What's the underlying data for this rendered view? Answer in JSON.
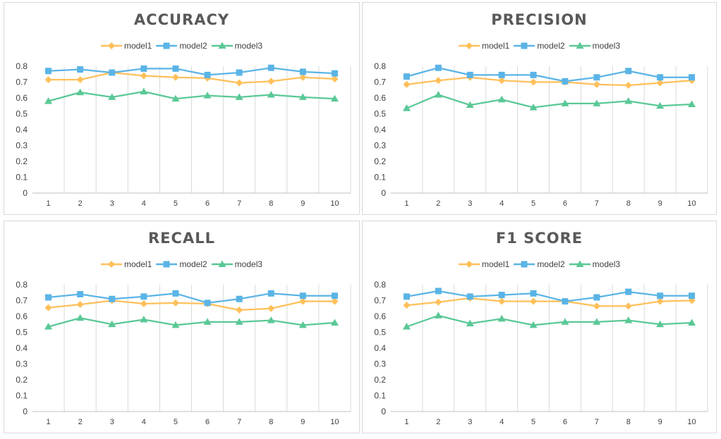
{
  "colors": {
    "model1": "#FFC05A",
    "model2": "#5AB4E6",
    "model3": "#5AC896",
    "grid": "#d9d9d9",
    "axis": "#bfbfbf",
    "title": "#595959"
  },
  "chart_data": [
    {
      "type": "line",
      "title": "ACCURACY",
      "categories": [
        "1",
        "2",
        "3",
        "4",
        "5",
        "6",
        "7",
        "8",
        "9",
        "10"
      ],
      "ylim": [
        0,
        0.8
      ],
      "yticks": [
        "0",
        "0.1",
        "0.2",
        "0.3",
        "0.4",
        "0.5",
        "0.6",
        "0.7",
        "0.8"
      ],
      "grid": "vertical",
      "legend_position": "top",
      "series": [
        {
          "name": "model1",
          "marker": "diamond",
          "values": [
            0.715,
            0.715,
            0.76,
            0.74,
            0.73,
            0.725,
            0.695,
            0.705,
            0.73,
            0.72
          ]
        },
        {
          "name": "model2",
          "marker": "square",
          "values": [
            0.77,
            0.78,
            0.76,
            0.785,
            0.785,
            0.745,
            0.76,
            0.79,
            0.765,
            0.755
          ]
        },
        {
          "name": "model3",
          "marker": "triangle",
          "values": [
            0.58,
            0.635,
            0.605,
            0.64,
            0.595,
            0.615,
            0.605,
            0.62,
            0.605,
            0.595
          ]
        }
      ]
    },
    {
      "type": "line",
      "title": "PRECISION",
      "categories": [
        "1",
        "2",
        "3",
        "4",
        "5",
        "6",
        "7",
        "8",
        "9",
        "10"
      ],
      "ylim": [
        0,
        0.8
      ],
      "yticks": [
        "0",
        "0.1",
        "0.2",
        "0.3",
        "0.4",
        "0.5",
        "0.6",
        "0.7",
        "0.8"
      ],
      "grid": "vertical",
      "legend_position": "top",
      "series": [
        {
          "name": "model1",
          "marker": "diamond",
          "values": [
            0.685,
            0.71,
            0.73,
            0.71,
            0.7,
            0.7,
            0.685,
            0.68,
            0.695,
            0.71
          ]
        },
        {
          "name": "model2",
          "marker": "square",
          "values": [
            0.735,
            0.79,
            0.745,
            0.745,
            0.745,
            0.705,
            0.73,
            0.77,
            0.73,
            0.73
          ]
        },
        {
          "name": "model3",
          "marker": "triangle",
          "values": [
            0.535,
            0.62,
            0.555,
            0.59,
            0.54,
            0.565,
            0.565,
            0.58,
            0.55,
            0.56
          ]
        }
      ]
    },
    {
      "type": "line",
      "title": "RECALL",
      "categories": [
        "1",
        "2",
        "3",
        "4",
        "5",
        "6",
        "7",
        "8",
        "9",
        "10"
      ],
      "ylim": [
        0,
        0.8
      ],
      "yticks": [
        "0",
        "0.1",
        "0.2",
        "0.3",
        "0.4",
        "0.5",
        "0.6",
        "0.7",
        "0.8"
      ],
      "grid": "vertical",
      "legend_position": "top",
      "series": [
        {
          "name": "model1",
          "marker": "diamond",
          "values": [
            0.655,
            0.675,
            0.7,
            0.68,
            0.685,
            0.68,
            0.64,
            0.65,
            0.695,
            0.695
          ]
        },
        {
          "name": "model2",
          "marker": "square",
          "values": [
            0.72,
            0.74,
            0.71,
            0.725,
            0.745,
            0.685,
            0.71,
            0.745,
            0.73,
            0.73
          ]
        },
        {
          "name": "model3",
          "marker": "triangle",
          "values": [
            0.535,
            0.59,
            0.55,
            0.58,
            0.545,
            0.565,
            0.565,
            0.575,
            0.545,
            0.56
          ]
        }
      ]
    },
    {
      "type": "line",
      "title": "F1 SCORE",
      "categories": [
        "1",
        "2",
        "3",
        "4",
        "5",
        "6",
        "7",
        "8",
        "9",
        "10"
      ],
      "ylim": [
        0,
        0.8
      ],
      "yticks": [
        "0",
        "0.1",
        "0.2",
        "0.3",
        "0.4",
        "0.5",
        "0.6",
        "0.7",
        "0.8"
      ],
      "grid": "vertical",
      "legend_position": "top",
      "series": [
        {
          "name": "model1",
          "marker": "diamond",
          "values": [
            0.67,
            0.69,
            0.715,
            0.695,
            0.695,
            0.695,
            0.665,
            0.665,
            0.695,
            0.7
          ]
        },
        {
          "name": "model2",
          "marker": "square",
          "values": [
            0.725,
            0.76,
            0.725,
            0.735,
            0.745,
            0.695,
            0.72,
            0.755,
            0.73,
            0.73
          ]
        },
        {
          "name": "model3",
          "marker": "triangle",
          "values": [
            0.535,
            0.605,
            0.555,
            0.585,
            0.545,
            0.565,
            0.565,
            0.575,
            0.55,
            0.56
          ]
        }
      ]
    }
  ]
}
